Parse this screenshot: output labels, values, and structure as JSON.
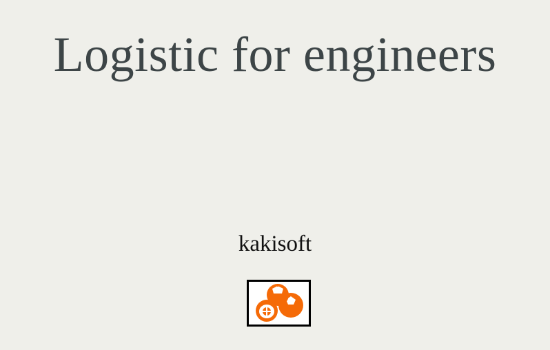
{
  "page": {
    "title": "Logistic for engineers",
    "author": "kakisoft",
    "logo_icon": "persimmon-icon",
    "colors": {
      "background": "#efefea",
      "title": "#3d4547",
      "author": "#111111",
      "logo_fruit": "#f56a07"
    }
  }
}
